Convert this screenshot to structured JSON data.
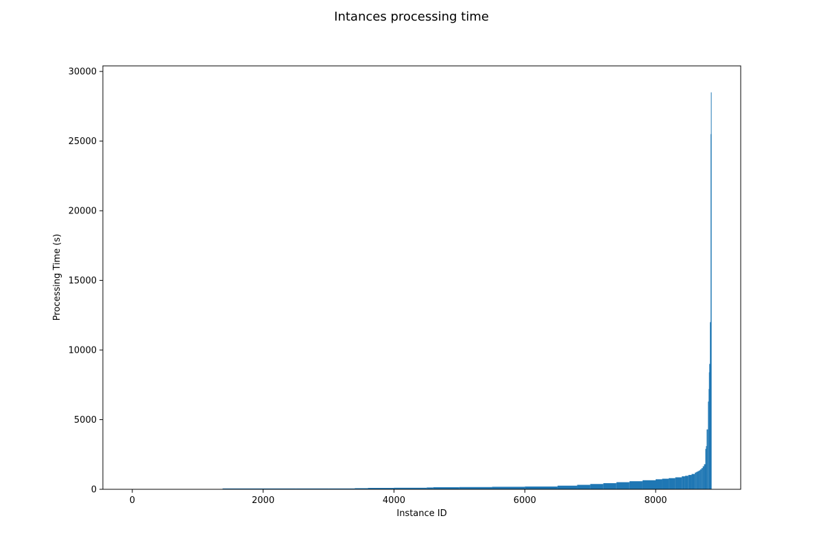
{
  "chart_data": {
    "type": "bar",
    "title": "Intances processing time",
    "xlabel": "Instance ID",
    "ylabel": "Processing Time (s)",
    "xlim": [
      -450,
      9300
    ],
    "ylim": [
      0,
      30400
    ],
    "xticks": [
      0,
      2000,
      4000,
      6000,
      8000
    ],
    "yticks": [
      0,
      5000,
      10000,
      15000,
      20000,
      25000,
      30000
    ],
    "grid": false,
    "bar_color": "#1f77b4",
    "series": [
      {
        "x": [
          0,
          1000,
          1380,
          2000,
          2500,
          3000,
          3400,
          3600,
          4000,
          4500,
          4600,
          5000,
          5500,
          6000,
          6500,
          6800,
          7000,
          7200,
          7400,
          7600,
          7800,
          8000,
          8100,
          8200,
          8300,
          8400,
          8450,
          8500,
          8550,
          8600,
          8620,
          8640,
          8660,
          8680,
          8700,
          8720,
          8740,
          8760,
          8770,
          8780,
          8790,
          8800,
          8810,
          8815,
          8820,
          8825,
          8830,
          8835,
          8840,
          8845
        ],
        "values": [
          0,
          0,
          60,
          60,
          60,
          60,
          80,
          100,
          110,
          130,
          150,
          160,
          180,
          200,
          260,
          320,
          380,
          440,
          510,
          580,
          650,
          720,
          760,
          800,
          860,
          930,
          970,
          1030,
          1100,
          1200,
          1250,
          1300,
          1350,
          1430,
          1520,
          1650,
          1800,
          2900,
          3100,
          4300,
          4300,
          6300,
          7200,
          8400,
          9000,
          9000,
          12000,
          12000,
          25500,
          28500
        ]
      }
    ]
  }
}
